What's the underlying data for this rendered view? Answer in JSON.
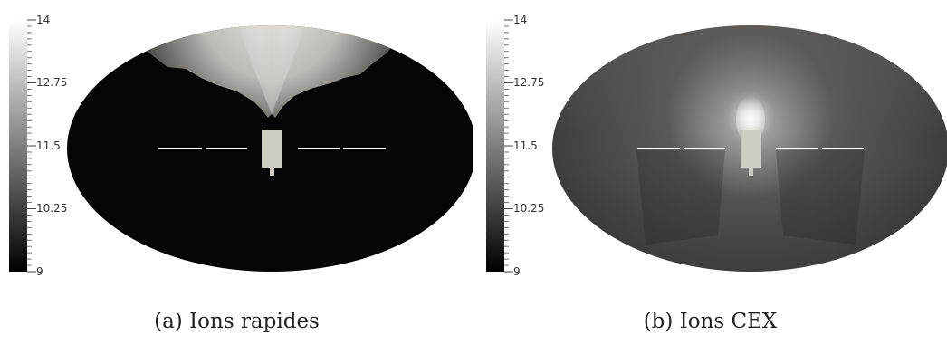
{
  "colorbar": {
    "ticks": [
      "14",
      "12.75",
      "11.5",
      "10.25",
      "9"
    ]
  },
  "panels": [
    {
      "caption": "(a) Ions rapides"
    },
    {
      "caption": "(b) Ions CEX"
    }
  ],
  "colors": {
    "colorbar_top": "#ffffff",
    "colorbar_bottom": "#000000",
    "satellite": "#cfccc6",
    "panel_line": "#ffffff"
  }
}
